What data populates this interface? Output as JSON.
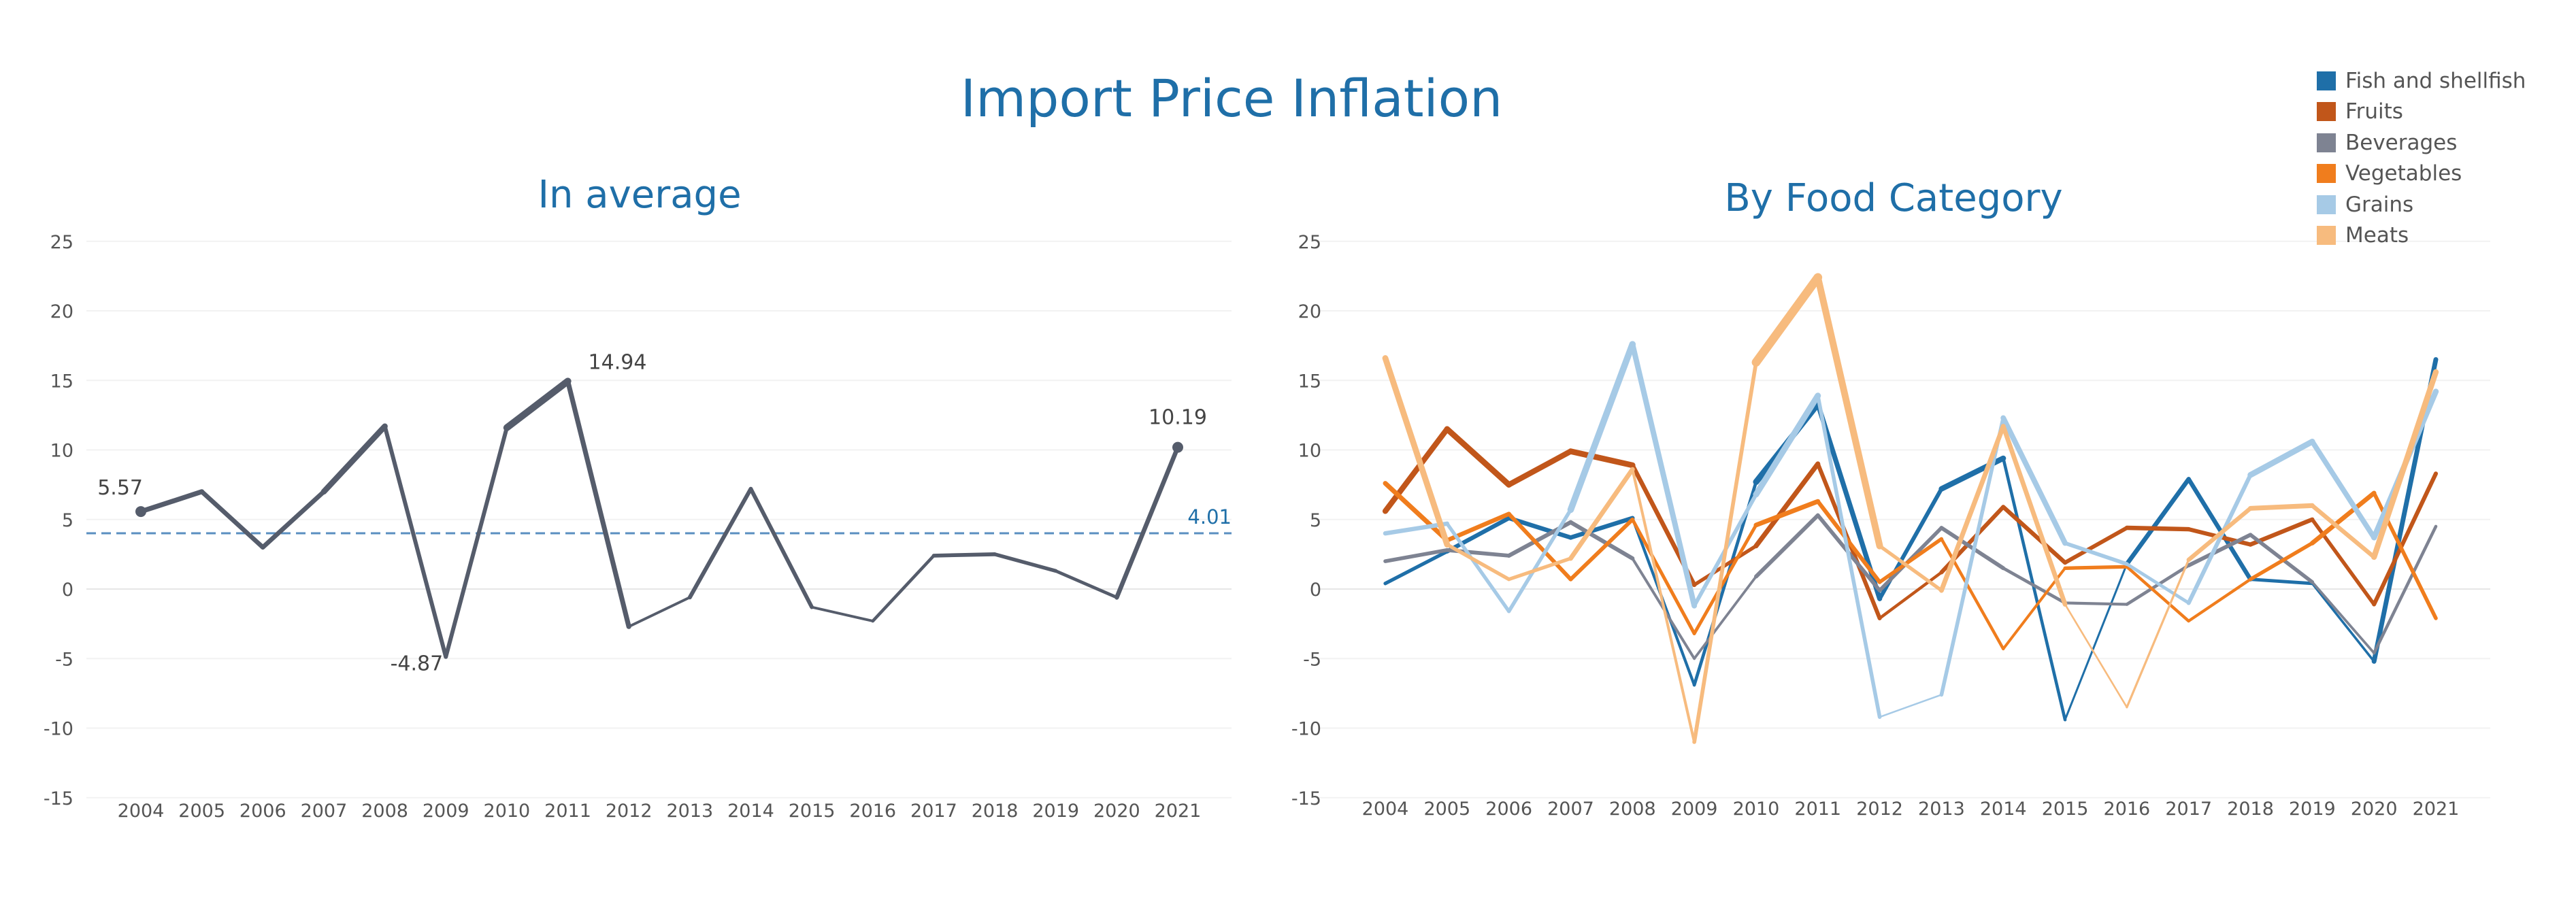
{
  "title": "Import Price Inflation",
  "chart_data": [
    {
      "type": "line",
      "title": "In average",
      "x": [
        2004,
        2005,
        2006,
        2007,
        2008,
        2009,
        2010,
        2011,
        2012,
        2013,
        2014,
        2015,
        2016,
        2017,
        2018,
        2019,
        2020,
        2021
      ],
      "series": [
        {
          "values": [
            5.57,
            7.0,
            3.0,
            7.0,
            11.7,
            -4.87,
            11.6,
            14.94,
            -2.7,
            -0.6,
            7.2,
            -1.3,
            -2.3,
            2.4,
            2.5,
            1.3,
            -0.6,
            10.19
          ]
        }
      ],
      "reference_line": {
        "value": 4.01,
        "label": "4.01",
        "style": "dashed"
      },
      "point_labels": [
        {
          "x": 2004,
          "label": "5.57"
        },
        {
          "x": 2009,
          "label": "-4.87"
        },
        {
          "x": 2011,
          "label": "14.94"
        },
        {
          "x": 2021,
          "label": "10.19"
        }
      ],
      "ylim": [
        -15,
        25
      ],
      "yticks": [
        25,
        20,
        15,
        10,
        5,
        0,
        -5,
        -10,
        -15
      ],
      "grid": true,
      "colors": {
        "line": "#555c6b",
        "reference": "#5a8fc0",
        "reference_label": "#1f6fa8"
      }
    },
    {
      "type": "line",
      "title": "By Food Category",
      "x": [
        2004,
        2005,
        2006,
        2007,
        2008,
        2009,
        2010,
        2011,
        2012,
        2013,
        2014,
        2015,
        2016,
        2017,
        2018,
        2019,
        2020,
        2021
      ],
      "series": [
        {
          "name": "Fish and shellfish",
          "color": "#1f6fa8",
          "values": [
            0.4,
            2.7,
            5.1,
            3.7,
            5.1,
            -6.9,
            7.7,
            13.3,
            -0.7,
            7.2,
            9.4,
            -9.4,
            1.8,
            7.9,
            0.7,
            0.4,
            -5.2,
            16.5
          ]
        },
        {
          "name": "Fruits",
          "color": "#c1561a",
          "values": [
            5.6,
            11.5,
            7.5,
            9.9,
            8.9,
            0.3,
            3.1,
            9.0,
            -2.1,
            1.2,
            5.9,
            1.9,
            4.4,
            4.3,
            3.2,
            5.0,
            -1.1,
            8.3
          ]
        },
        {
          "name": "Beverages",
          "color": "#7e8392",
          "values": [
            2.0,
            2.8,
            2.4,
            4.8,
            2.2,
            -5.0,
            0.9,
            5.3,
            -0.1,
            4.4,
            1.5,
            -1.0,
            -1.1,
            1.7,
            3.9,
            0.5,
            -4.6,
            4.5
          ]
        },
        {
          "name": "Vegetables",
          "color": "#f07d1d",
          "values": [
            7.6,
            3.5,
            5.4,
            0.7,
            5.0,
            -3.2,
            4.6,
            6.3,
            0.5,
            3.6,
            -4.3,
            1.5,
            1.6,
            -2.3,
            0.7,
            3.3,
            6.9,
            -2.1
          ]
        },
        {
          "name": "Grains",
          "color": "#a6cae6",
          "values": [
            4.0,
            4.7,
            -1.6,
            5.7,
            17.6,
            -1.2,
            6.8,
            13.9,
            -9.2,
            -7.6,
            12.3,
            3.3,
            1.8,
            -1.0,
            8.2,
            10.6,
            3.7,
            14.2
          ]
        },
        {
          "name": "Meats",
          "color": "#f7bb7e",
          "values": [
            16.6,
            3.2,
            0.7,
            2.2,
            8.6,
            -11.0,
            16.3,
            22.4,
            3.1,
            -0.1,
            11.7,
            -1.1,
            -8.5,
            2.1,
            5.8,
            6.0,
            2.3,
            15.6
          ]
        }
      ],
      "ylim": [
        -15,
        25
      ],
      "yticks": [
        25,
        20,
        15,
        10,
        5,
        0,
        -5,
        -10,
        -15
      ],
      "grid": true,
      "legend_position": "top-right"
    }
  ]
}
